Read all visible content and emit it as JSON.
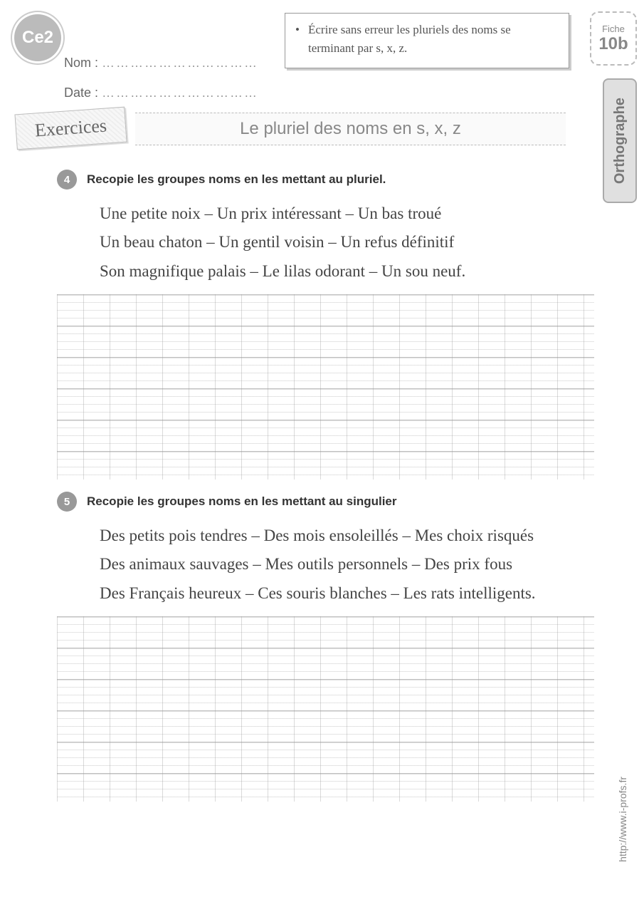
{
  "grade": "Ce2",
  "fiche": {
    "label": "Fiche",
    "number": "10b"
  },
  "subject": "Orthographe",
  "objective": "Écrire sans erreur les pluriels des noms se terminant par s, x, z.",
  "fields": {
    "nom_label": "Nom :",
    "date_label": "Date :",
    "dots": "……………………………"
  },
  "exercices_tag": "Exercices",
  "title": "Le pluriel des noms en s, x, z",
  "exercise1": {
    "number": "4",
    "instruction": "Recopie les groupes noms en les mettant au pluriel.",
    "lines": [
      "Une petite noix – Un prix intéressant – Un bas troué",
      "Un beau chaton – Un gentil voisin – Un refus définitif",
      "Son magnifique palais – Le lilas odorant – Un sou neuf."
    ]
  },
  "exercise2": {
    "number": "5",
    "instruction": "Recopie les groupes noms en les mettant au singulier",
    "lines": [
      "Des petits pois tendres – Des mois ensoleillés – Mes choix risqués",
      "Des animaux sauvages – Mes outils personnels – Des prix fous",
      "Des Français heureux – Ces souris blanches – Les rats intelligents."
    ]
  },
  "source_url": "http://www.i-profs.fr",
  "colors": {
    "badge_bg": "#bbbbbb",
    "text": "#555555",
    "accent": "#999999"
  }
}
